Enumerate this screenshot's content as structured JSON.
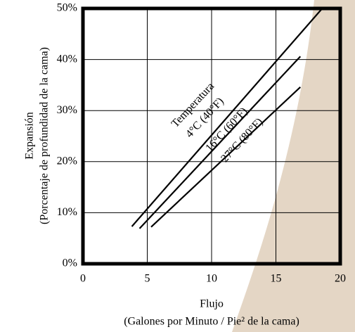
{
  "chart_data": {
    "type": "line",
    "xlabel": "Flujo",
    "xlabel_sub": "(Galones por Minuto / Pie² de la cama)",
    "ylabel": "Expansión",
    "ylabel_sub": "(Porcentaje de profundidad de la cama)",
    "annotation": "Temperatura",
    "xlim": [
      0,
      20
    ],
    "xticks": [
      0,
      5,
      10,
      15,
      20
    ],
    "ylim": [
      0,
      50
    ],
    "yticks": [
      {
        "value": 0,
        "label": "0%"
      },
      {
        "value": 10,
        "label": "10%"
      },
      {
        "value": 20,
        "label": "20%"
      },
      {
        "value": 30,
        "label": "30%"
      },
      {
        "value": 40,
        "label": "40%"
      },
      {
        "value": 50,
        "label": "50%"
      }
    ],
    "grid": true,
    "series": [
      {
        "name": "4°C (40°F)",
        "color": "#000000",
        "x": [
          3.8,
          18.6
        ],
        "values": [
          7.3,
          50
        ]
      },
      {
        "name": "16°C (60°F)",
        "color": "#000000",
        "x": [
          4.4,
          16.9
        ],
        "values": [
          6.9,
          40.6
        ]
      },
      {
        "name": "27°C (80°F)",
        "color": "#000000",
        "x": [
          5.3,
          16.9
        ],
        "values": [
          7.2,
          34.6
        ]
      }
    ]
  }
}
